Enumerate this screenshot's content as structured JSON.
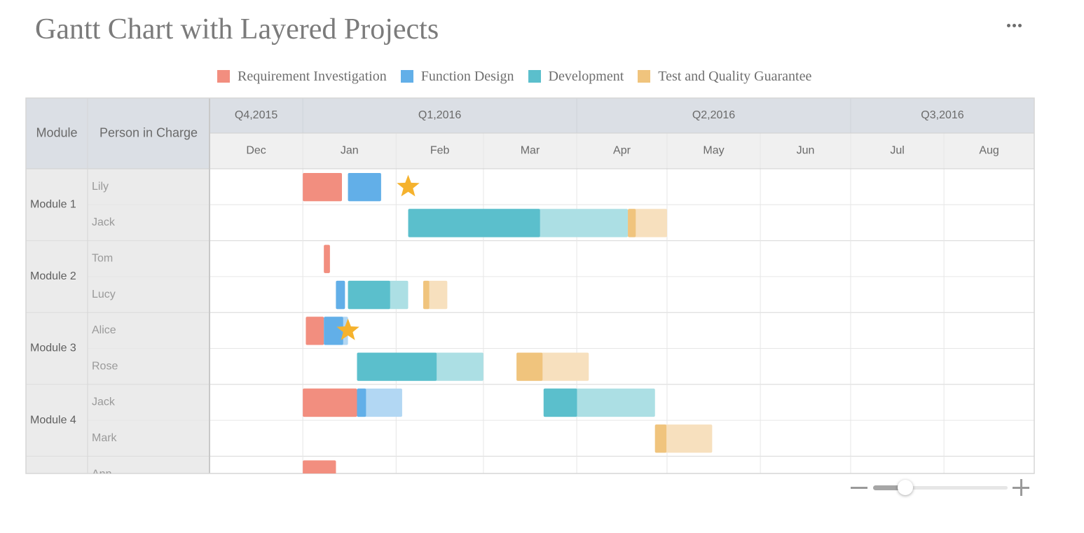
{
  "title": "Gantt Chart with Layered Projects",
  "menu_icon": "more-dots-icon",
  "legend": [
    {
      "label": "Requirement Investigation",
      "color": "#f28e7f"
    },
    {
      "label": "Function Design",
      "color": "#62afe8"
    },
    {
      "label": "Development",
      "color": "#5bbfcc"
    },
    {
      "label": "Test and Quality Guarantee",
      "color": "#f0c47d"
    }
  ],
  "zoom": {
    "minus_icon": "zoom-out-icon",
    "plus_icon": "zoom-in-icon",
    "level": 0.18
  },
  "chart_data": {
    "type": "gantt",
    "title": "Gantt Chart with Layered Projects",
    "grid": true,
    "columns": [
      "Module",
      "Person in Charge"
    ],
    "time_range": [
      "2015-12-01",
      "2016-08-31"
    ],
    "quarters": [
      {
        "label": "Q4,2015",
        "start": "2015-12-01",
        "end": "2016-01-01"
      },
      {
        "label": "Q1,2016",
        "start": "2016-01-01",
        "end": "2016-04-01"
      },
      {
        "label": "Q2,2016",
        "start": "2016-04-01",
        "end": "2016-07-01"
      },
      {
        "label": "Q3,2016",
        "start": "2016-07-01",
        "end": "2016-08-31"
      }
    ],
    "months": [
      {
        "label": "Dec",
        "start": "2015-12-01",
        "end": "2016-01-01"
      },
      {
        "label": "Jan",
        "start": "2016-01-01",
        "end": "2016-02-01"
      },
      {
        "label": "Feb",
        "start": "2016-02-01",
        "end": "2016-03-01"
      },
      {
        "label": "Mar",
        "start": "2016-03-01",
        "end": "2016-04-01"
      },
      {
        "label": "Apr",
        "start": "2016-04-01",
        "end": "2016-05-01"
      },
      {
        "label": "May",
        "start": "2016-05-01",
        "end": "2016-06-01"
      },
      {
        "label": "Jun",
        "start": "2016-06-01",
        "end": "2016-07-01"
      },
      {
        "label": "Jul",
        "start": "2016-07-01",
        "end": "2016-08-01"
      },
      {
        "label": "Aug",
        "start": "2016-08-01",
        "end": "2016-08-31"
      }
    ],
    "modules": [
      {
        "name": "Module 1",
        "persons": [
          "Lily",
          "Jack"
        ]
      },
      {
        "name": "Module 2",
        "persons": [
          "Tom",
          "Lucy"
        ]
      },
      {
        "name": "Module 3",
        "persons": [
          "Alice",
          "Rose"
        ]
      },
      {
        "name": "Module 4",
        "persons": [
          "Jack",
          "Mark"
        ]
      },
      {
        "name": "",
        "persons": [
          "Ann"
        ]
      }
    ],
    "tasks": [
      {
        "row": 0,
        "phase": "Requirement Investigation",
        "start": "2016-01-01",
        "end": "2016-01-14",
        "progress": 1
      },
      {
        "row": 0,
        "phase": "Function Design",
        "start": "2016-01-16",
        "end": "2016-01-27",
        "progress": 1
      },
      {
        "row": 1,
        "phase": "Development",
        "start": "2016-02-05",
        "end": "2016-04-18",
        "progress": 0.6
      },
      {
        "row": 1,
        "phase": "Test and Quality Guarantee",
        "start": "2016-04-18",
        "end": "2016-05-01",
        "progress": 0.2
      },
      {
        "row": 2,
        "phase": "Requirement Investigation",
        "start": "2016-01-08",
        "end": "2016-01-10",
        "progress": 1
      },
      {
        "row": 3,
        "phase": "Function Design",
        "start": "2016-01-12",
        "end": "2016-01-15",
        "progress": 1
      },
      {
        "row": 3,
        "phase": "Development",
        "start": "2016-01-16",
        "end": "2016-02-05",
        "progress": 0.7
      },
      {
        "row": 3,
        "phase": "Test and Quality Guarantee",
        "start": "2016-02-10",
        "end": "2016-02-18",
        "progress": 0.25
      },
      {
        "row": 4,
        "phase": "Requirement Investigation",
        "start": "2016-01-02",
        "end": "2016-01-08",
        "progress": 1
      },
      {
        "row": 4,
        "phase": "Function Design",
        "start": "2016-01-08",
        "end": "2016-01-16",
        "progress": 0.8
      },
      {
        "row": 5,
        "phase": "Development",
        "start": "2016-01-19",
        "end": "2016-03-01",
        "progress": 0.63
      },
      {
        "row": 5,
        "phase": "Test and Quality Guarantee",
        "start": "2016-03-12",
        "end": "2016-04-05",
        "progress": 0.36
      },
      {
        "row": 6,
        "phase": "Requirement Investigation",
        "start": "2016-01-01",
        "end": "2016-01-19",
        "progress": 1
      },
      {
        "row": 6,
        "phase": "Function Design",
        "start": "2016-01-19",
        "end": "2016-02-03",
        "progress": 0.2
      },
      {
        "row": 6,
        "phase": "Development",
        "start": "2016-03-21",
        "end": "2016-04-27",
        "progress": 0.3
      },
      {
        "row": 7,
        "phase": "Test and Quality Guarantee",
        "start": "2016-04-27",
        "end": "2016-05-16",
        "progress": 0.2
      },
      {
        "row": 8,
        "phase": "Requirement Investigation",
        "start": "2016-01-01",
        "end": "2016-01-12",
        "progress": 1
      }
    ],
    "milestones": [
      {
        "row": 0,
        "date": "2016-02-05",
        "icon": "star-icon",
        "color": "#f5b22d"
      },
      {
        "row": 4,
        "date": "2016-01-16",
        "icon": "star-icon",
        "color": "#f5b22d"
      }
    ]
  }
}
